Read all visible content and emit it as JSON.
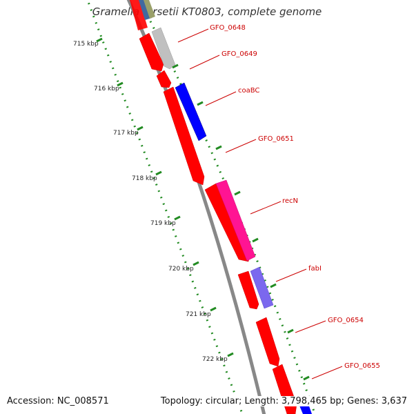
{
  "title": "Gramella forsetii KT0803, complete genome",
  "footer": {
    "accession": "Accession: NC_008571",
    "summary": "Topology: circular; Length: 3,798,465 bp; Genes: 3,637"
  },
  "tick_labels": [
    "715 kbp",
    "716 kbp",
    "717 kbp",
    "718 kbp",
    "719 kbp",
    "720 kbp",
    "721 kbp",
    "722 kbp"
  ],
  "genes": [
    {
      "name": "GFO_0648",
      "color": "#c0c0c0",
      "strand": "+"
    },
    {
      "name": "GFO_0649",
      "color": "#ff0000",
      "strand": "-"
    },
    {
      "name": "coaBC",
      "color": "#0000ff",
      "strand": "+"
    },
    {
      "name": "GFO_0651",
      "color": "#ff0000",
      "strand": "-"
    },
    {
      "name": "recN",
      "color": "#ff1493",
      "strand": "+"
    },
    {
      "name": "fabI",
      "color": "#7b68ee",
      "strand": "+"
    },
    {
      "name": "GFO_0654",
      "color": "#ff0000",
      "strand": "-"
    },
    {
      "name": "GFO_0655",
      "color": "#ff0000",
      "strand": "-"
    }
  ],
  "colors": {
    "backbone": "#888888",
    "tick_dot": "#228b22",
    "label": "#cc0000",
    "leader": "#cc0000"
  }
}
